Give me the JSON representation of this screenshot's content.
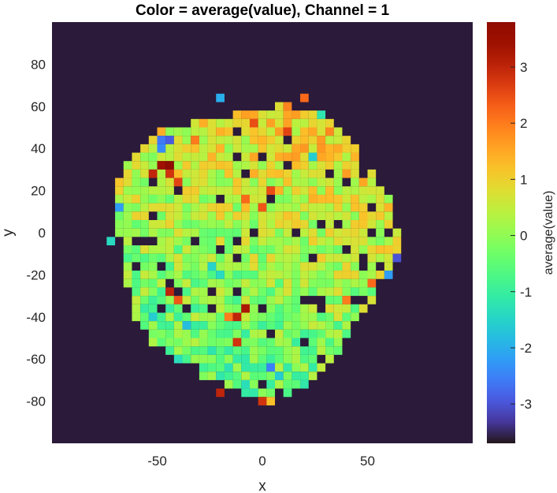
{
  "chart_data": {
    "type": "heatmap",
    "title": "Color = average(value),  Channel = 1",
    "xlabel": "x",
    "ylabel": "y",
    "xlim": [
      -100,
      100
    ],
    "ylim": [
      -100,
      100
    ],
    "x_ticks": [
      -50,
      0,
      50
    ],
    "y_ticks": [
      80,
      60,
      40,
      20,
      0,
      -20,
      -40,
      -60,
      -80
    ],
    "colorbar": {
      "label": "average(value)",
      "clim": [
        -3.7,
        3.8
      ],
      "ticks": [
        3,
        2,
        1,
        0,
        -1,
        -2,
        -3
      ],
      "colormap": "turbo"
    },
    "background_color": "#2b1a3a",
    "cell_size": 4,
    "note_cells": "Scattered blob of ~4x4 unit cells covering roughly x -70..65, y -85..65; most values between -1 and 1.5 (green-yellow), a few outliers down to -3 (blue) and up to 3.8 (dark red).",
    "outliers": [
      {
        "x": -44,
        "y": 32,
        "value": 3.8
      },
      {
        "x": -48,
        "y": 32,
        "value": 3.4
      },
      {
        "x": -52,
        "y": 28,
        "value": 3.0
      },
      {
        "x": -44,
        "y": 28,
        "value": 2.8
      },
      {
        "x": -40,
        "y": 24,
        "value": 2.6
      },
      {
        "x": -48,
        "y": 44,
        "value": -2.6
      },
      {
        "x": -44,
        "y": 44,
        "value": -2.9
      },
      {
        "x": -48,
        "y": 40,
        "value": -2.4
      },
      {
        "x": 64,
        "y": -12,
        "value": -3.0
      },
      {
        "x": 60,
        "y": -20,
        "value": -2.2
      },
      {
        "x": -68,
        "y": 12,
        "value": -2.2
      },
      {
        "x": -72,
        "y": -4,
        "value": -1.4
      },
      {
        "x": 4,
        "y": -64,
        "value": -2.5
      },
      {
        "x": 8,
        "y": -68,
        "value": -1.6
      },
      {
        "x": -20,
        "y": 64,
        "value": -2.0
      },
      {
        "x": -12,
        "y": -52,
        "value": 2.8
      },
      {
        "x": -20,
        "y": -76,
        "value": 3.0
      },
      {
        "x": -12,
        "y": -40,
        "value": 3.0
      },
      {
        "x": -16,
        "y": -40,
        "value": 2.0
      },
      {
        "x": -8,
        "y": -36,
        "value": 3.2
      },
      {
        "x": -44,
        "y": -28,
        "value": 3.0
      },
      {
        "x": 12,
        "y": 48,
        "value": 2.6
      },
      {
        "x": -4,
        "y": 52,
        "value": 2.5
      },
      {
        "x": 20,
        "y": 64,
        "value": 2.2
      },
      {
        "x": 0,
        "y": 12,
        "value": 2.4
      },
      {
        "x": 4,
        "y": 20,
        "value": 2.5
      },
      {
        "x": -8,
        "y": 16,
        "value": 2.2
      },
      {
        "x": -40,
        "y": -32,
        "value": 2.4
      },
      {
        "x": 0,
        "y": -80,
        "value": 2.8
      },
      {
        "x": 0,
        "y": -84,
        "value": 2.0
      },
      {
        "x": 4,
        "y": -84,
        "value": 1.0
      },
      {
        "x": 4,
        "y": -80,
        "value": 1.2
      },
      {
        "x": 40,
        "y": -32,
        "value": 2.0
      },
      {
        "x": 52,
        "y": -24,
        "value": 2.2
      },
      {
        "x": -32,
        "y": 44,
        "value": 2.0
      },
      {
        "x": -36,
        "y": -44,
        "value": -1.8
      },
      {
        "x": -52,
        "y": -40,
        "value": -1.6
      },
      {
        "x": -24,
        "y": -16,
        "value": -1.5
      },
      {
        "x": -20,
        "y": -20,
        "value": -1.4
      },
      {
        "x": 24,
        "y": 36,
        "value": -1.6
      },
      {
        "x": 28,
        "y": 56,
        "value": -1.2
      }
    ]
  }
}
